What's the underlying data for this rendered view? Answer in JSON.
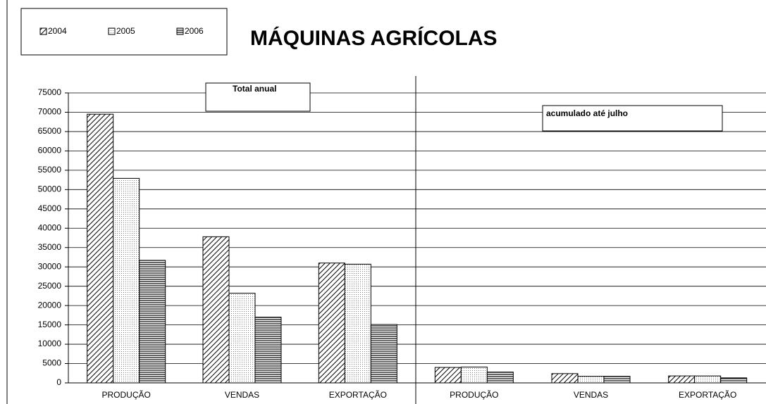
{
  "chart_data": {
    "type": "bar",
    "title": "MÁQUINAS AGRÍCOLAS",
    "annotations": [
      "Total anual",
      "acumulado até julho"
    ],
    "categories": [
      "PRODUÇÃO",
      "VENDAS",
      "EXPORTAÇÃO",
      "PRODUÇÃO",
      "VENDAS",
      "EXPORTAÇÃO"
    ],
    "series": [
      {
        "name": "2004",
        "color": "#000000",
        "pattern": "diagonal",
        "values": [
          69500,
          37800,
          31000,
          4000,
          2400,
          1800
        ]
      },
      {
        "name": "2005",
        "color": "#000000",
        "pattern": "dots",
        "values": [
          52900,
          23200,
          30700,
          4100,
          1700,
          1800
        ]
      },
      {
        "name": "2006",
        "color": "#000000",
        "pattern": "horizontal",
        "values": [
          31700,
          17000,
          15100,
          2800,
          1700,
          1300
        ]
      }
    ],
    "ylim": [
      0,
      75000
    ],
    "yticks": [
      0,
      5000,
      10000,
      15000,
      20000,
      25000,
      30000,
      35000,
      40000,
      45000,
      50000,
      55000,
      60000,
      65000,
      70000,
      75000
    ],
    "grid": true,
    "legend": "top-left"
  }
}
